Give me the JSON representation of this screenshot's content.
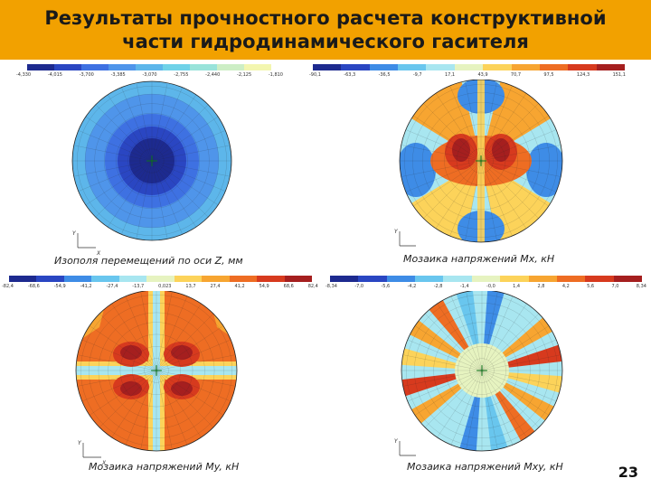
{
  "title": "Результаты прочностного расчета конструктивной части гидродинамического гасителя",
  "panels": [
    {
      "id": "displacement",
      "caption": "Изополя перемещений по оси Z, мм",
      "axis_y": "Y",
      "axis_x": "X",
      "palette": [
        "#1d2a8f",
        "#2a46c2",
        "#3e71e2",
        "#4f95ea",
        "#5db6ea",
        "#6fd2e8",
        "#99e3da",
        "#cdeec5",
        "#f3f6b0"
      ],
      "ticks": [
        "-4,330",
        "-4,015",
        "-3,700",
        "-3,385",
        "-3,070",
        "-2,755",
        "-2,440",
        "-2,125",
        "-1,810"
      ]
    },
    {
      "id": "mx",
      "caption": "Мозаика напряжений Мx, кН",
      "axis_y": "Y",
      "axis_x": "",
      "palette": [
        "#1d2a8f",
        "#2a46c2",
        "#3e8ce6",
        "#69c6ee",
        "#a8e6f0",
        "#e6f3c0",
        "#fcd35a",
        "#f7a531",
        "#ee6d23",
        "#d73a1e",
        "#a51f1f"
      ],
      "ticks": [
        "-90,1",
        "-63,3",
        "-36,5",
        "-9,7",
        "17,1",
        "43,9",
        "70,7",
        "97,5",
        "124,3",
        "151,1"
      ]
    },
    {
      "id": "my",
      "caption": "Мозаика напряжений Мy, кН",
      "axis_y": "Y",
      "axis_x": "X",
      "palette": [
        "#1d2a8f",
        "#2a46c2",
        "#3e8ce6",
        "#69c6ee",
        "#a8e6f0",
        "#e6f3c0",
        "#fcd35a",
        "#f7a531",
        "#ee6d23",
        "#d73a1e",
        "#a51f1f"
      ],
      "ticks": [
        "-82,4",
        "-68,6",
        "-54,9",
        "-41,2",
        "-27,4",
        "-13,7",
        "0,023",
        "13,7",
        "27,4",
        "41,2",
        "54,9",
        "68,6",
        "82,4"
      ]
    },
    {
      "id": "mxy",
      "caption": "Мозаика напряжений Мxy, кН",
      "axis_y": "Y",
      "axis_x": "",
      "palette": [
        "#1d2a8f",
        "#2a46c2",
        "#3e8ce6",
        "#69c6ee",
        "#a8e6f0",
        "#e6f3c0",
        "#fcd35a",
        "#f7a531",
        "#ee6d23",
        "#d73a1e",
        "#a51f1f"
      ],
      "ticks": [
        "-8,34",
        "-7,0",
        "-5,6",
        "-4,2",
        "-2,8",
        "-1,4",
        "-0,0",
        "1,4",
        "2,8",
        "4,2",
        "5,6",
        "7,0",
        "8,34"
      ]
    }
  ],
  "page_number": "23"
}
